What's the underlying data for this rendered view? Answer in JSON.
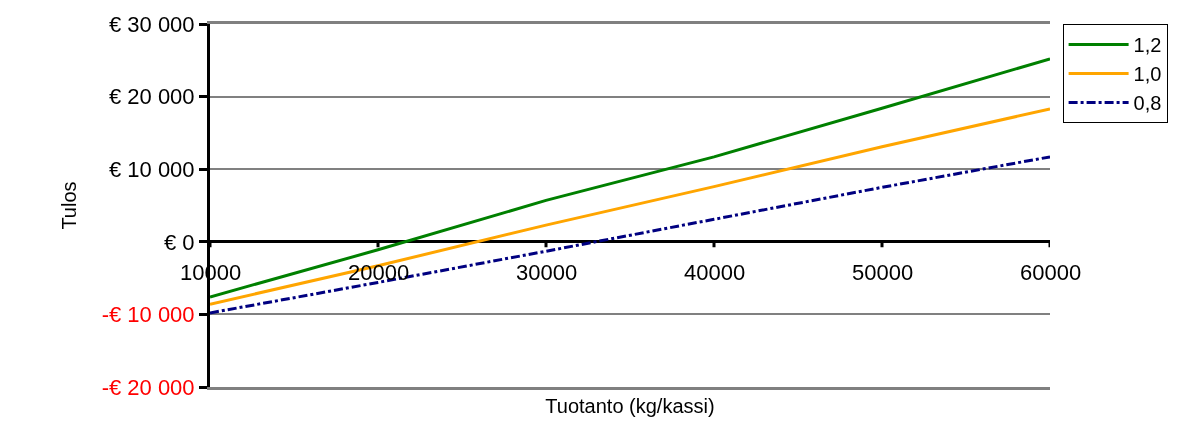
{
  "chart_data": {
    "type": "line",
    "xlabel": "Tuotanto (kg/kassi)",
    "ylabel": "Tulos",
    "x": [
      10000,
      20000,
      30000,
      40000,
      50000,
      60000
    ],
    "series": [
      {
        "name": "1,2",
        "color": "#008000",
        "values": [
          -7600,
          -1100,
          5700,
          11700,
          18400,
          25200
        ],
        "line_style": "solid"
      },
      {
        "name": "1,0",
        "color": "#ffa500",
        "values": [
          -8600,
          -3300,
          2300,
          7600,
          13100,
          18300
        ],
        "line_style": "solid"
      },
      {
        "name": "0,8",
        "color": "#000080",
        "values": [
          -9800,
          -5600,
          -1300,
          3100,
          7500,
          11700
        ],
        "line_style": "dashdot"
      }
    ],
    "xlim": [
      10000,
      60000
    ],
    "xticks": [
      10000,
      20000,
      30000,
      40000,
      50000,
      60000
    ],
    "ylim": [
      -20000,
      30000
    ],
    "yticks": [
      {
        "value": -20000,
        "label": "-€ 20 000"
      },
      {
        "value": -10000,
        "label": "-€ 10 000"
      },
      {
        "value": 0,
        "label": "€ 0"
      },
      {
        "value": 10000,
        "label": "€ 10 000"
      },
      {
        "value": 20000,
        "label": "€ 20 000"
      },
      {
        "value": 30000,
        "label": "€ 30 000"
      }
    ],
    "grid": "y",
    "legend": "right",
    "marker": "none"
  }
}
